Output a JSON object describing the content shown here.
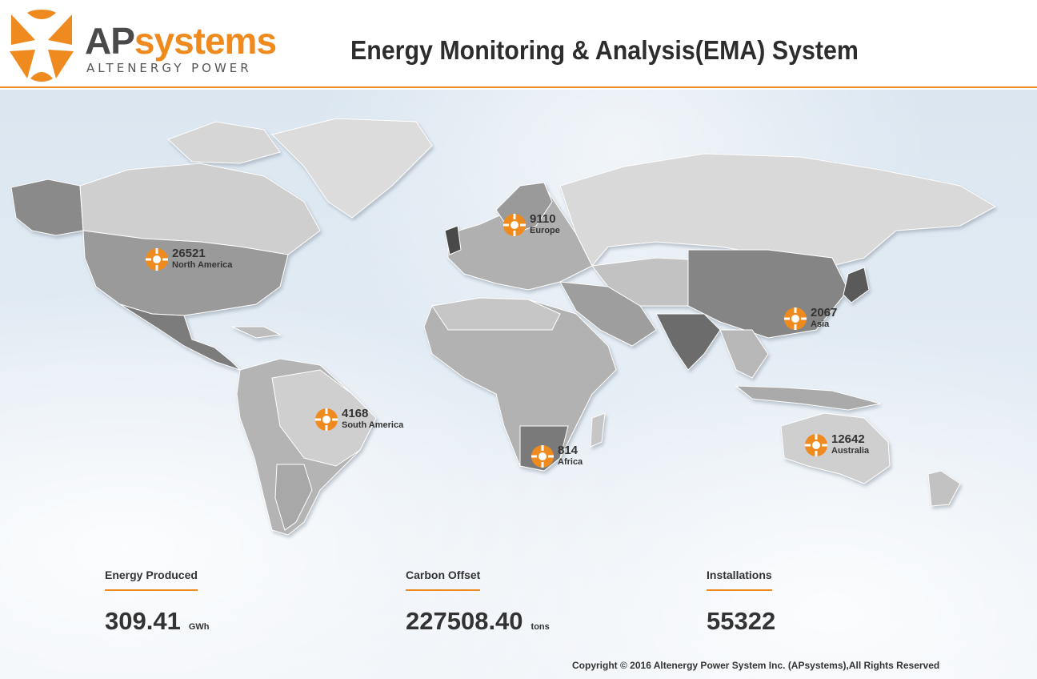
{
  "header": {
    "logo_ap": "AP",
    "logo_systems": "systems",
    "logo_subtitle": "ALTENERGY POWER",
    "title": "Energy Monitoring & Analysis(EMA) System",
    "accent_color": "#ef8a1e"
  },
  "map": {
    "markers": [
      {
        "count": "26521",
        "region": "North America",
        "icon": "apsystems-logo-icon"
      },
      {
        "count": "9110",
        "region": "Europe",
        "icon": "apsystems-logo-icon"
      },
      {
        "count": "2067",
        "region": "Asia",
        "icon": "apsystems-logo-icon"
      },
      {
        "count": "4168",
        "region": "South America",
        "icon": "apsystems-logo-icon"
      },
      {
        "count": "814",
        "region": "Africa",
        "icon": "apsystems-logo-icon"
      },
      {
        "count": "12642",
        "region": "Australia",
        "icon": "apsystems-logo-icon"
      }
    ]
  },
  "stats": {
    "energy": {
      "label": "Energy Produced",
      "value": "309.41",
      "unit": "GWh"
    },
    "carbon": {
      "label": "Carbon Offset",
      "value": "227508.40",
      "unit": "tons"
    },
    "installs": {
      "label": "Installations",
      "value": "55322",
      "unit": ""
    }
  },
  "footer": {
    "copyright": "Copyright © 2016 Altenergy Power System Inc. (APsystems),All Rights Reserved"
  }
}
